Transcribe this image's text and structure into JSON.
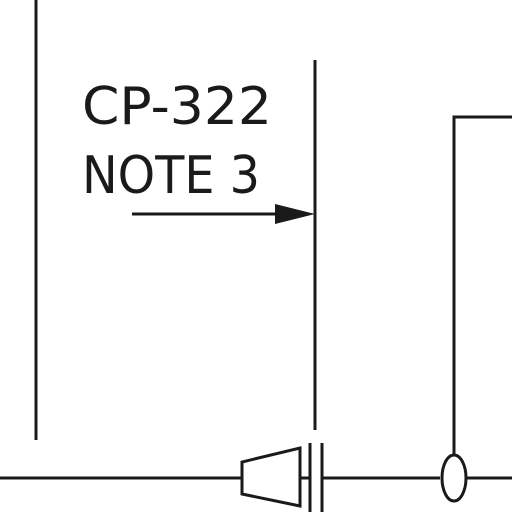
{
  "callout": {
    "line1": "CP-322",
    "line2": "NOTE 3"
  },
  "colors": {
    "ink": "#1a1a1a",
    "paper": "#ffffff"
  }
}
